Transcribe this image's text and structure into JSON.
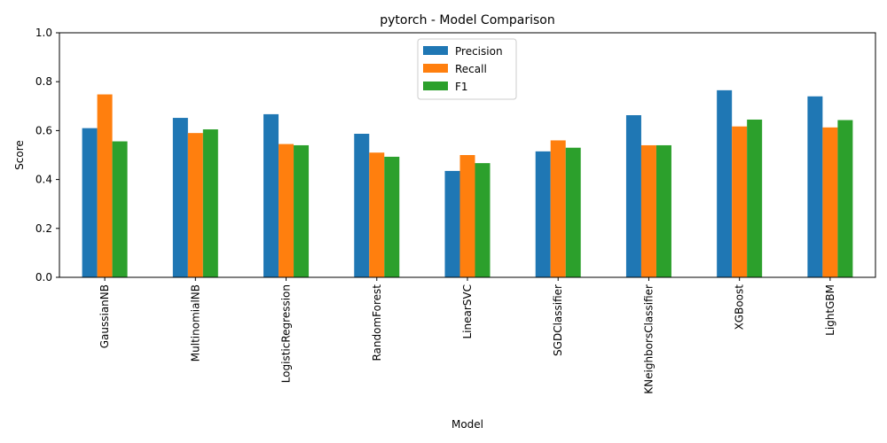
{
  "chart_data": {
    "type": "bar",
    "title": "pytorch - Model Comparison",
    "xlabel": "Model",
    "ylabel": "Score",
    "ylim": [
      0,
      1.0
    ],
    "yticks": [
      "0.0",
      "0.2",
      "0.4",
      "0.6",
      "0.8",
      "1.0"
    ],
    "grid": false,
    "legend_position": "top-center",
    "categories": [
      "GaussianNB",
      "MultinomialNB",
      "LogisticRegression",
      "RandomForest",
      "LinearSVC",
      "SGDClassifier",
      "KNeighborsClassifier",
      "XGBoost",
      "LightGBM"
    ],
    "series": [
      {
        "name": "Precision",
        "color": "#1f77b4",
        "values": [
          0.61,
          0.652,
          0.667,
          0.587,
          0.435,
          0.515,
          0.663,
          0.765,
          0.74
        ]
      },
      {
        "name": "Recall",
        "color": "#ff7f0e",
        "values": [
          0.748,
          0.59,
          0.545,
          0.51,
          0.5,
          0.56,
          0.54,
          0.617,
          0.613
        ]
      },
      {
        "name": "F1",
        "color": "#2ca02c",
        "values": [
          0.556,
          0.605,
          0.54,
          0.493,
          0.467,
          0.53,
          0.54,
          0.645,
          0.643
        ]
      }
    ]
  }
}
